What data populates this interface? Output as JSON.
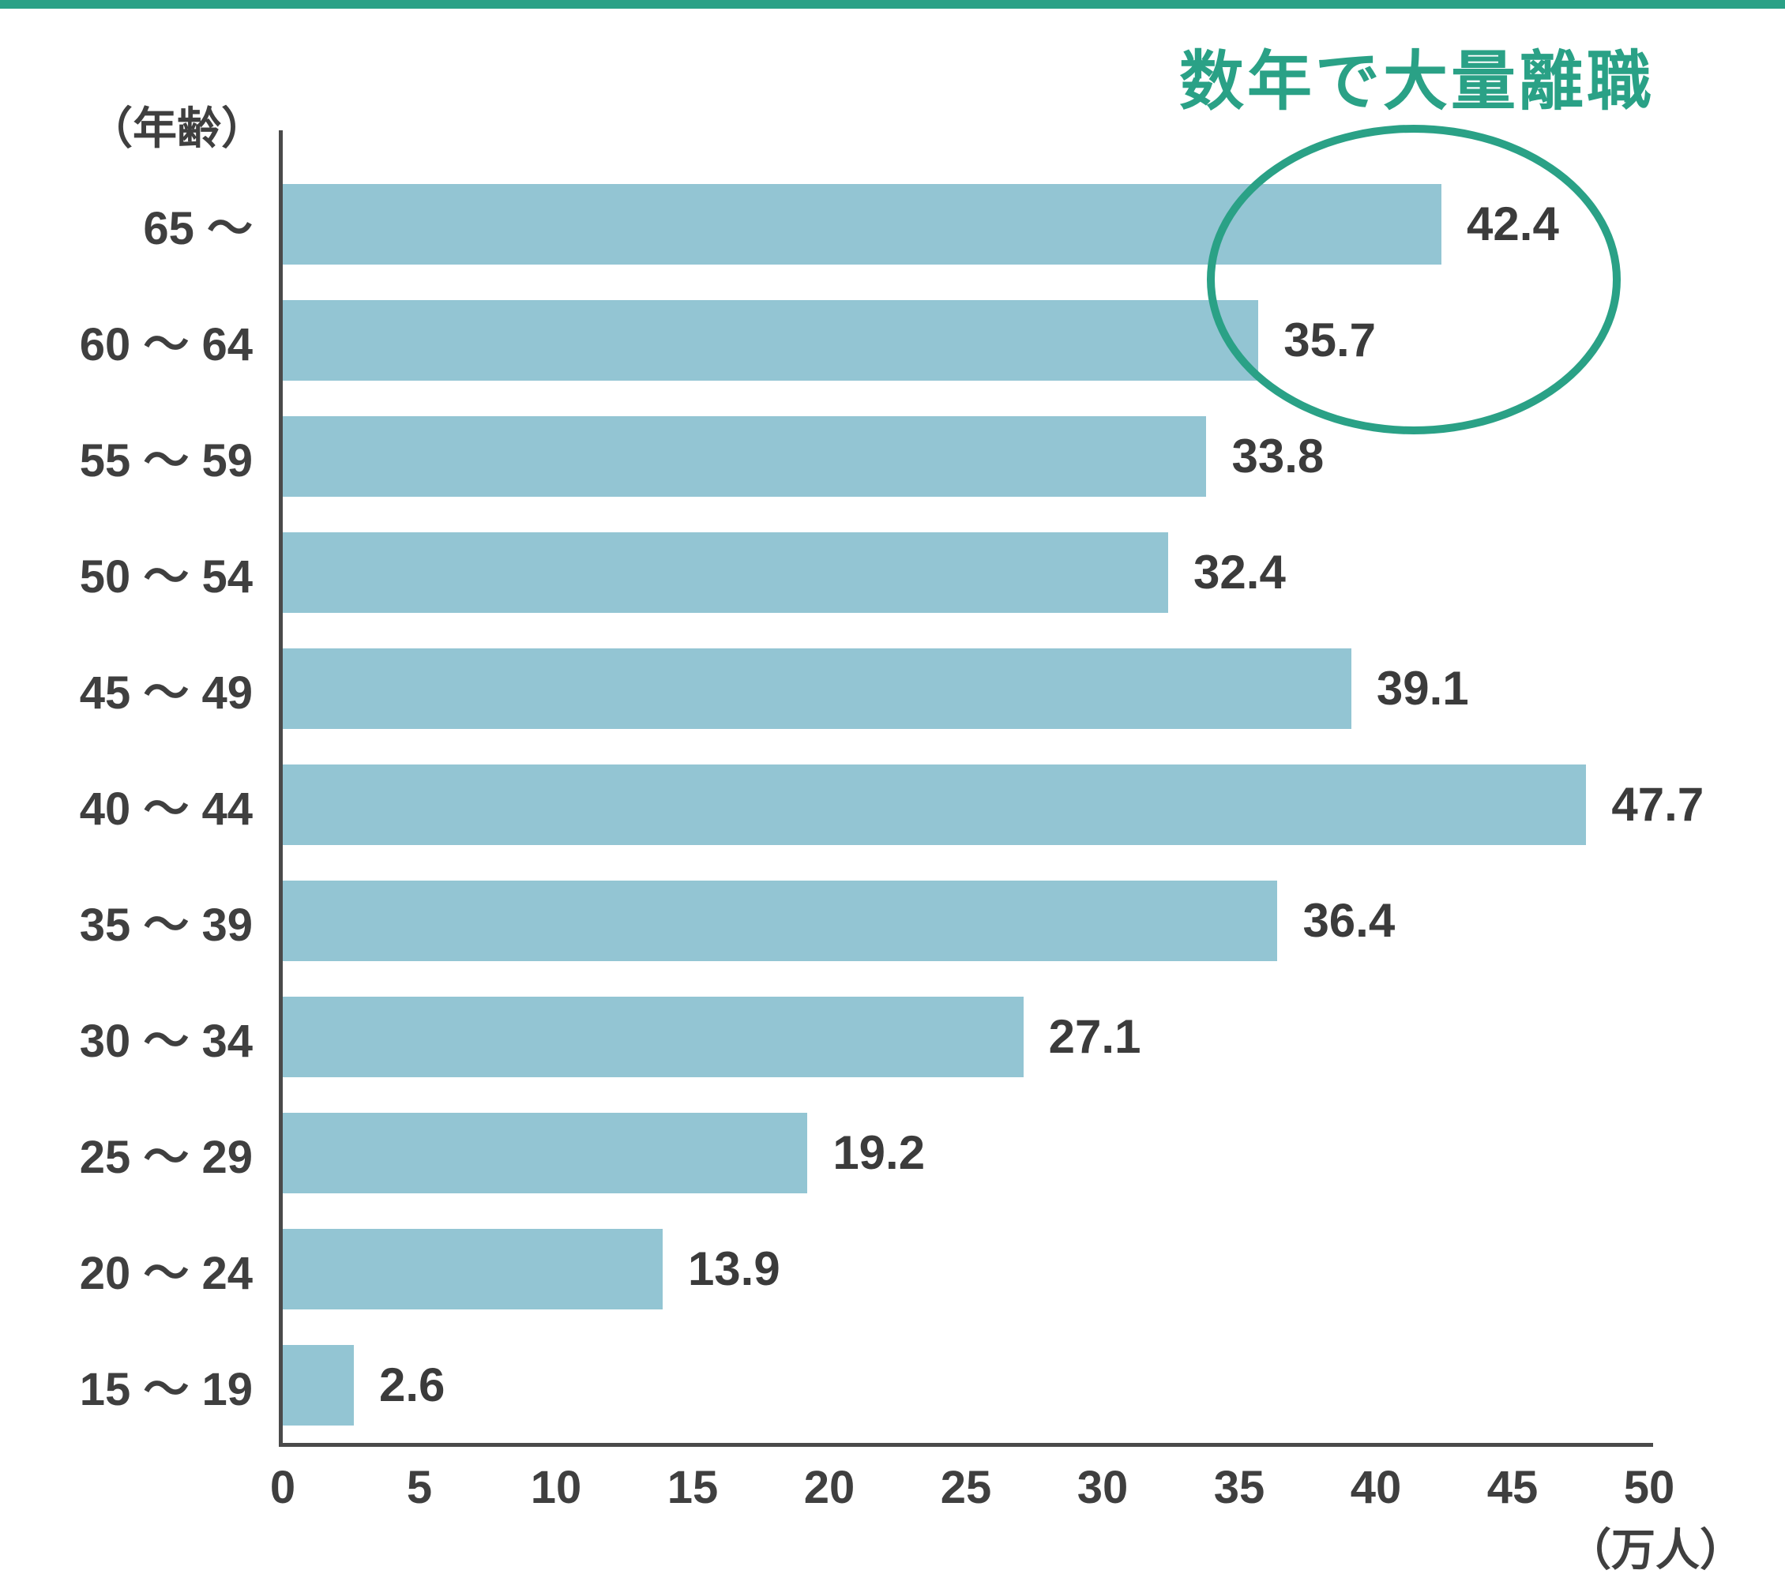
{
  "page": {
    "top_bar_color": "#2aa186",
    "background_color": "#ffffff"
  },
  "chart_data": {
    "type": "bar",
    "orientation": "horizontal",
    "title": "",
    "ylabel": "（年齢）",
    "xlabel": "（万人）",
    "categories": [
      "65 〜",
      "60 〜 64",
      "55 〜 59",
      "50 〜 54",
      "45 〜 49",
      "40 〜 44",
      "35 〜 39",
      "30 〜 34",
      "25 〜 29",
      "20 〜 24",
      "15 〜 19"
    ],
    "values": [
      42.4,
      35.7,
      33.8,
      32.4,
      39.1,
      47.7,
      36.4,
      27.1,
      19.2,
      13.9,
      2.6
    ],
    "xlim": [
      0,
      50
    ],
    "xticks": [
      0,
      5,
      10,
      15,
      20,
      25,
      30,
      35,
      40,
      45,
      50
    ],
    "grid": false,
    "legend": false,
    "bar_color": "#93c5d3",
    "axis_color": "#4a4a4a",
    "text_color": "#3f3f3f",
    "annotation": {
      "text": "数年で大量離職",
      "color": "#2aa186",
      "highlighted_categories": [
        "65 〜",
        "60 〜 64"
      ]
    }
  }
}
